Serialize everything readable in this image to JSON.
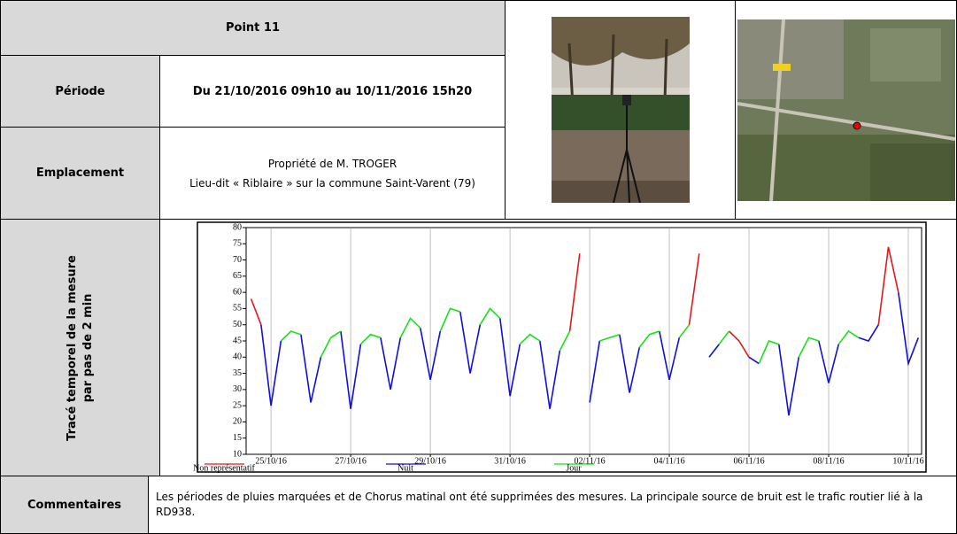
{
  "header": {
    "point": "Point 11"
  },
  "rows": {
    "period": {
      "label": "Période",
      "value": "Du 21/10/2016 09h10 au 10/11/2016 15h20"
    },
    "location": {
      "label": "Emplacement",
      "lines": [
        "Propriété de M. TROGER",
        "Lieu-dit « Riblaire » sur la commune Saint-Varent (79)"
      ]
    },
    "trace": {
      "label": [
        "Tracé temporel de la mesure",
        "par pas de 2 min"
      ]
    },
    "comments": {
      "label": "Commentaires",
      "value": "Les périodes de pluies marquées et de Chorus matinal ont été supprimées des mesures. La principale source de bruit est le trafic routier lié à la RD938."
    }
  },
  "chart_data": {
    "type": "line",
    "legend": "bottom",
    "grid": "x",
    "x": [
      "2016-10-24T12:00",
      "2016-10-24T18:00",
      "2016-10-25T00:00",
      "2016-10-25T06:00",
      "2016-10-25T12:00",
      "2016-10-25T18:00",
      "2016-10-26T00:00",
      "2016-10-26T06:00",
      "2016-10-26T12:00",
      "2016-10-26T18:00",
      "2016-10-27T00:00",
      "2016-10-27T06:00",
      "2016-10-27T12:00",
      "2016-10-27T18:00",
      "2016-10-28T00:00",
      "2016-10-28T06:00",
      "2016-10-28T12:00",
      "2016-10-28T18:00",
      "2016-10-29T00:00",
      "2016-10-29T06:00",
      "2016-10-29T12:00",
      "2016-10-29T18:00",
      "2016-10-30T00:00",
      "2016-10-30T06:00",
      "2016-10-30T12:00",
      "2016-10-30T18:00",
      "2016-10-31T00:00",
      "2016-10-31T06:00",
      "2016-10-31T12:00",
      "2016-10-31T18:00",
      "2016-11-01T00:00",
      "2016-11-01T06:00",
      "2016-11-01T12:00",
      "2016-11-01T18:00",
      "2016-11-02T00:00",
      "2016-11-02T06:00",
      "2016-11-02T12:00",
      "2016-11-02T18:00",
      "2016-11-03T00:00",
      "2016-11-03T06:00",
      "2016-11-03T12:00",
      "2016-11-03T18:00",
      "2016-11-04T00:00",
      "2016-11-04T06:00",
      "2016-11-04T12:00",
      "2016-11-04T18:00",
      "2016-11-05T00:00",
      "2016-11-05T06:00",
      "2016-11-05T12:00",
      "2016-11-05T18:00",
      "2016-11-06T00:00",
      "2016-11-06T06:00",
      "2016-11-06T12:00",
      "2016-11-06T18:00",
      "2016-11-07T00:00",
      "2016-11-07T06:00",
      "2016-11-07T12:00",
      "2016-11-07T18:00",
      "2016-11-08T00:00",
      "2016-11-08T06:00",
      "2016-11-08T12:00",
      "2016-11-08T18:00",
      "2016-11-09T00:00",
      "2016-11-09T06:00",
      "2016-11-09T12:00",
      "2016-11-09T18:00",
      "2016-11-10T00:00",
      "2016-11-10T06:00"
    ],
    "series": [
      {
        "name": "Non représentatif",
        "color": "#e0191c",
        "values": [
          58,
          50,
          null,
          null,
          null,
          null,
          null,
          null,
          null,
          null,
          null,
          null,
          null,
          null,
          null,
          null,
          null,
          null,
          null,
          null,
          null,
          null,
          null,
          null,
          null,
          null,
          null,
          null,
          null,
          null,
          null,
          null,
          48,
          72,
          null,
          null,
          null,
          null,
          null,
          null,
          null,
          null,
          null,
          null,
          50,
          72,
          null,
          null,
          48,
          45,
          40,
          null,
          null,
          null,
          null,
          null,
          null,
          null,
          null,
          null,
          null,
          null,
          null,
          50,
          74,
          60,
          null,
          null
        ]
      },
      {
        "name": "Nuit",
        "color": "#1010d8",
        "values": [
          null,
          50,
          25,
          45,
          null,
          47,
          26,
          40,
          null,
          48,
          24,
          44,
          null,
          46,
          30,
          46,
          null,
          49,
          33,
          48,
          null,
          54,
          35,
          50,
          null,
          52,
          28,
          44,
          null,
          45,
          24,
          42,
          null,
          null,
          26,
          45,
          null,
          47,
          29,
          43,
          null,
          48,
          33,
          46,
          null,
          null,
          40,
          44,
          null,
          null,
          40,
          38,
          null,
          44,
          22,
          40,
          null,
          45,
          32,
          44,
          null,
          46,
          45,
          50,
          null,
          60,
          38,
          46
        ]
      },
      {
        "name": "Jour",
        "color": "#19e019",
        "values": [
          null,
          null,
          null,
          45,
          48,
          47,
          null,
          40,
          46,
          48,
          null,
          44,
          47,
          46,
          null,
          46,
          52,
          49,
          null,
          48,
          55,
          54,
          null,
          50,
          55,
          52,
          null,
          44,
          47,
          45,
          null,
          42,
          48,
          null,
          null,
          45,
          46,
          47,
          null,
          43,
          47,
          48,
          null,
          46,
          50,
          null,
          null,
          44,
          48,
          null,
          null,
          38,
          45,
          44,
          null,
          40,
          46,
          45,
          null,
          44,
          48,
          46,
          null,
          null,
          null,
          null,
          null,
          null
        ]
      }
    ],
    "xlim": [
      "2016-10-24T09:00",
      "2016-11-10T08:00"
    ],
    "xticks": [
      {
        "value": "2016-10-25T00:00",
        "label": "25/10/16"
      },
      {
        "value": "2016-10-27T00:00",
        "label": "27/10/16"
      },
      {
        "value": "2016-10-29T00:00",
        "label": "29/10/16"
      },
      {
        "value": "2016-10-31T00:00",
        "label": "31/10/16"
      },
      {
        "value": "2016-11-02T00:00",
        "label": "02/11/16"
      },
      {
        "value": "2016-11-04T00:00",
        "label": "04/11/16"
      },
      {
        "value": "2016-11-06T00:00",
        "label": "06/11/16"
      },
      {
        "value": "2016-11-08T00:00",
        "label": "08/11/16"
      },
      {
        "value": "2016-11-10T00:00",
        "label": "10/11/16"
      }
    ],
    "ylim": [
      10,
      80
    ],
    "yticks": [
      10,
      15,
      20,
      25,
      30,
      35,
      40,
      45,
      50,
      55,
      60,
      65,
      70,
      75,
      80
    ]
  }
}
